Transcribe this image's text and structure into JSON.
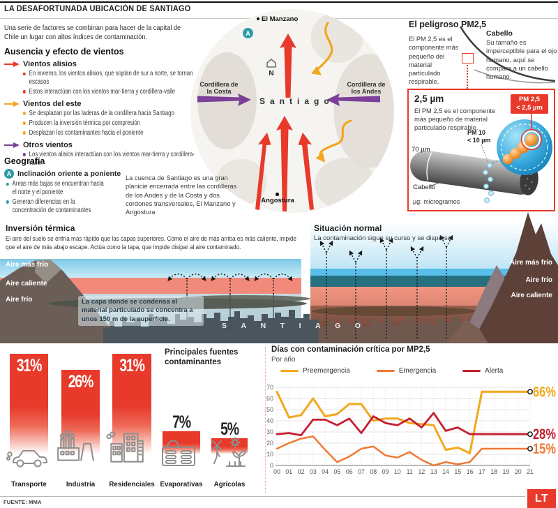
{
  "header": {
    "title": "LA DESAFORTUNADA UBICACIÓN DE SANTIAGO"
  },
  "intro": "Una serie de factores se combinan para hacer de la capital de Chile un lugar con altos índices de contaminación.",
  "winds": {
    "heading": "Ausencia y efecto de vientos",
    "groups": [
      {
        "label": "Vientos alisios",
        "color": "#E8392B",
        "bullets": [
          "En invierno, los vientos alisios, que soplan de sur a norte, se tornan escasos",
          "Estos interactúan con los vientos mar-tierra y cordillera-valle"
        ]
      },
      {
        "label": "Vientos del este",
        "color": "#F2A51F",
        "bullets": [
          "Se desplazan por las laderas de la cordillera hacia Santiago",
          "Producen la inversión térmica por compresión",
          "Desplazan los contaminantes hacia el poniente"
        ]
      },
      {
        "label": "Otros vientos",
        "color": "#7D3F98",
        "bullets": [
          "Los vientos alisios interactúan con los vientos mar-tierra y cordillera-valle."
        ]
      }
    ]
  },
  "geography": {
    "heading": "Geografía",
    "marker": "A",
    "subheading": "Inclinación oriente a poniente",
    "bullets": [
      "Áreas más bajas se encuentran hacia el norte y el poniente",
      "Generan diferencias en la concentración de contaminantes"
    ],
    "note": "La cuenca de Santiago es una gran planicie encerrada entre las cordilleras de los Andes y de la Costa y dos cordones transversales, El Manzano y Angostura"
  },
  "map": {
    "north_town": "El Manzano",
    "south_town": "Angostura",
    "west_label": "Cordillera de la Costa",
    "east_label": "Cordillera de los Andes",
    "city": "Santiago",
    "compass": "N",
    "marker": "A"
  },
  "pm25": {
    "heading": "El peligroso PM2,5",
    "intro": "El PM 2,5 es el componente más pequeño del material particulado respirable.",
    "hair_title": "Cabello",
    "hair_text": "Su tamaño es imperceptible para el ojo humano, aquí se compara a un cabello humano.",
    "box": {
      "title": "2,5 µm",
      "text": "El PM 2,5 es el componente más pequeño de material particulado respirable.",
      "hair_width": "70 µm",
      "pm10_1": "PM 10",
      "pm10_2": "< 10 µm",
      "badge_1": "PM 2,5",
      "badge_2": "< 2,5 µm",
      "hair_label": "Cabello",
      "footnote": "µg: microgramos"
    }
  },
  "inversion": {
    "title": "Inversión térmica",
    "text": "El aire del suelo se enfría más rápido que las capas superiores. Como el aire de más arriba es más caliente, impide que el aire de más abajo escape. Actúa como la tapa, que impide disipar al aire contaminado.",
    "layers": [
      "Aire más frío",
      "Aire caliente",
      "Aire frío"
    ],
    "note": "La capa donde se condensa el material particulado se concentra a unos 150 m de la superficie.",
    "city": "SANTIAGO"
  },
  "normal": {
    "title": "Situación normal",
    "text": "La contaminación sigue su curso y se dispersa",
    "layers": [
      "Aire más frío",
      "Aire frío",
      "Aire caliente"
    ]
  },
  "chart_data": [
    {
      "type": "bar",
      "title": "Principales fuentes contaminantes",
      "categories": [
        "Transporte",
        "Industria",
        "Residenciales",
        "Evaporativas",
        "Agrícolas"
      ],
      "values": [
        31,
        26,
        31,
        7,
        5
      ],
      "unit": "%",
      "bar_color": "#E8392B",
      "icons": [
        "car-icon",
        "factory-icon",
        "buildings-icon",
        "storage-tank-icon",
        "farm-icon"
      ]
    },
    {
      "type": "line",
      "title": "Días con contaminación crítica por MP2,5",
      "subtitle": "Por año",
      "x": [
        "00",
        "01",
        "02",
        "03",
        "04",
        "05",
        "06",
        "07",
        "08",
        "09",
        "10",
        "11",
        "12",
        "13",
        "14",
        "15",
        "16",
        "17",
        "18",
        "19",
        "20",
        "21"
      ],
      "ylim": [
        0,
        70
      ],
      "yticks": [
        0,
        10,
        20,
        30,
        40,
        50,
        60,
        70
      ],
      "grid": true,
      "legend_position": "top",
      "series": [
        {
          "name": "Preemergencia",
          "color": "#F2A81D",
          "end_label": "66%",
          "values": [
            66,
            43,
            45,
            60,
            44,
            46,
            55,
            55,
            40,
            42,
            42,
            38,
            37,
            36,
            14,
            16,
            11,
            66,
            66,
            66,
            66,
            66
          ]
        },
        {
          "name": "Emergencia",
          "color": "#F07832",
          "end_label": "15%",
          "values": [
            15,
            20,
            24,
            26,
            14,
            3,
            8,
            15,
            17,
            9,
            7,
            12,
            5,
            0,
            3,
            1,
            3,
            15,
            15,
            15,
            15,
            15
          ]
        },
        {
          "name": "Alerta",
          "color": "#C41E2F",
          "end_label": "28%",
          "values": [
            28,
            29,
            27,
            41,
            41,
            36,
            42,
            29,
            44,
            38,
            36,
            42,
            34,
            47,
            31,
            34,
            28,
            28,
            28,
            28,
            28,
            28
          ]
        }
      ]
    }
  ],
  "footer": {
    "source": "FUENTE: MMA",
    "logo": "LT"
  },
  "colors": {
    "accent_red": "#E8392B",
    "wind_orange": "#F2A51F",
    "wind_purple": "#7D3F98",
    "geo_teal": "#2E9BA6"
  }
}
